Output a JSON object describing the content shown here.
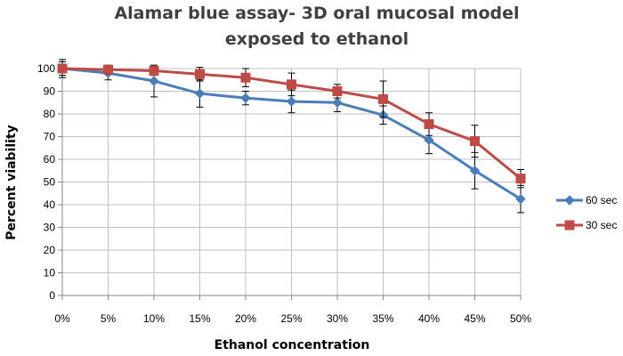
{
  "chart_data": {
    "type": "line",
    "title_lines": [
      "Alamar blue assay- 3D oral mucosal model",
      "exposed to ethanol"
    ],
    "xlabel": "Ethanol concentration",
    "ylabel": "Percent viability",
    "categories": [
      "0%",
      "5%",
      "10%",
      "15%",
      "20%",
      "25%",
      "30%",
      "35%",
      "40%",
      "45%",
      "50%"
    ],
    "ylim": [
      0,
      100
    ],
    "yticks": [
      0,
      10,
      20,
      30,
      40,
      50,
      60,
      70,
      80,
      90,
      100
    ],
    "grid": true,
    "legend_position": "right",
    "series": [
      {
        "name": "60 sec",
        "color": "#4a7ebb",
        "marker": "diamond",
        "values": [
          100,
          98,
          94.5,
          89,
          87,
          85.5,
          85,
          79.5,
          68.5,
          55,
          42.5
        ],
        "errors": [
          4,
          3,
          7,
          6,
          3,
          5,
          4,
          4,
          6,
          8,
          6
        ]
      },
      {
        "name": "30 sec",
        "color": "#be4b48",
        "marker": "square",
        "values": [
          100,
          99.5,
          99,
          97.5,
          96,
          93,
          90,
          86.5,
          75.5,
          68,
          51.5
        ],
        "errors": [
          3,
          2,
          2,
          3,
          4,
          5,
          3,
          8,
          5,
          7,
          4
        ]
      }
    ]
  }
}
